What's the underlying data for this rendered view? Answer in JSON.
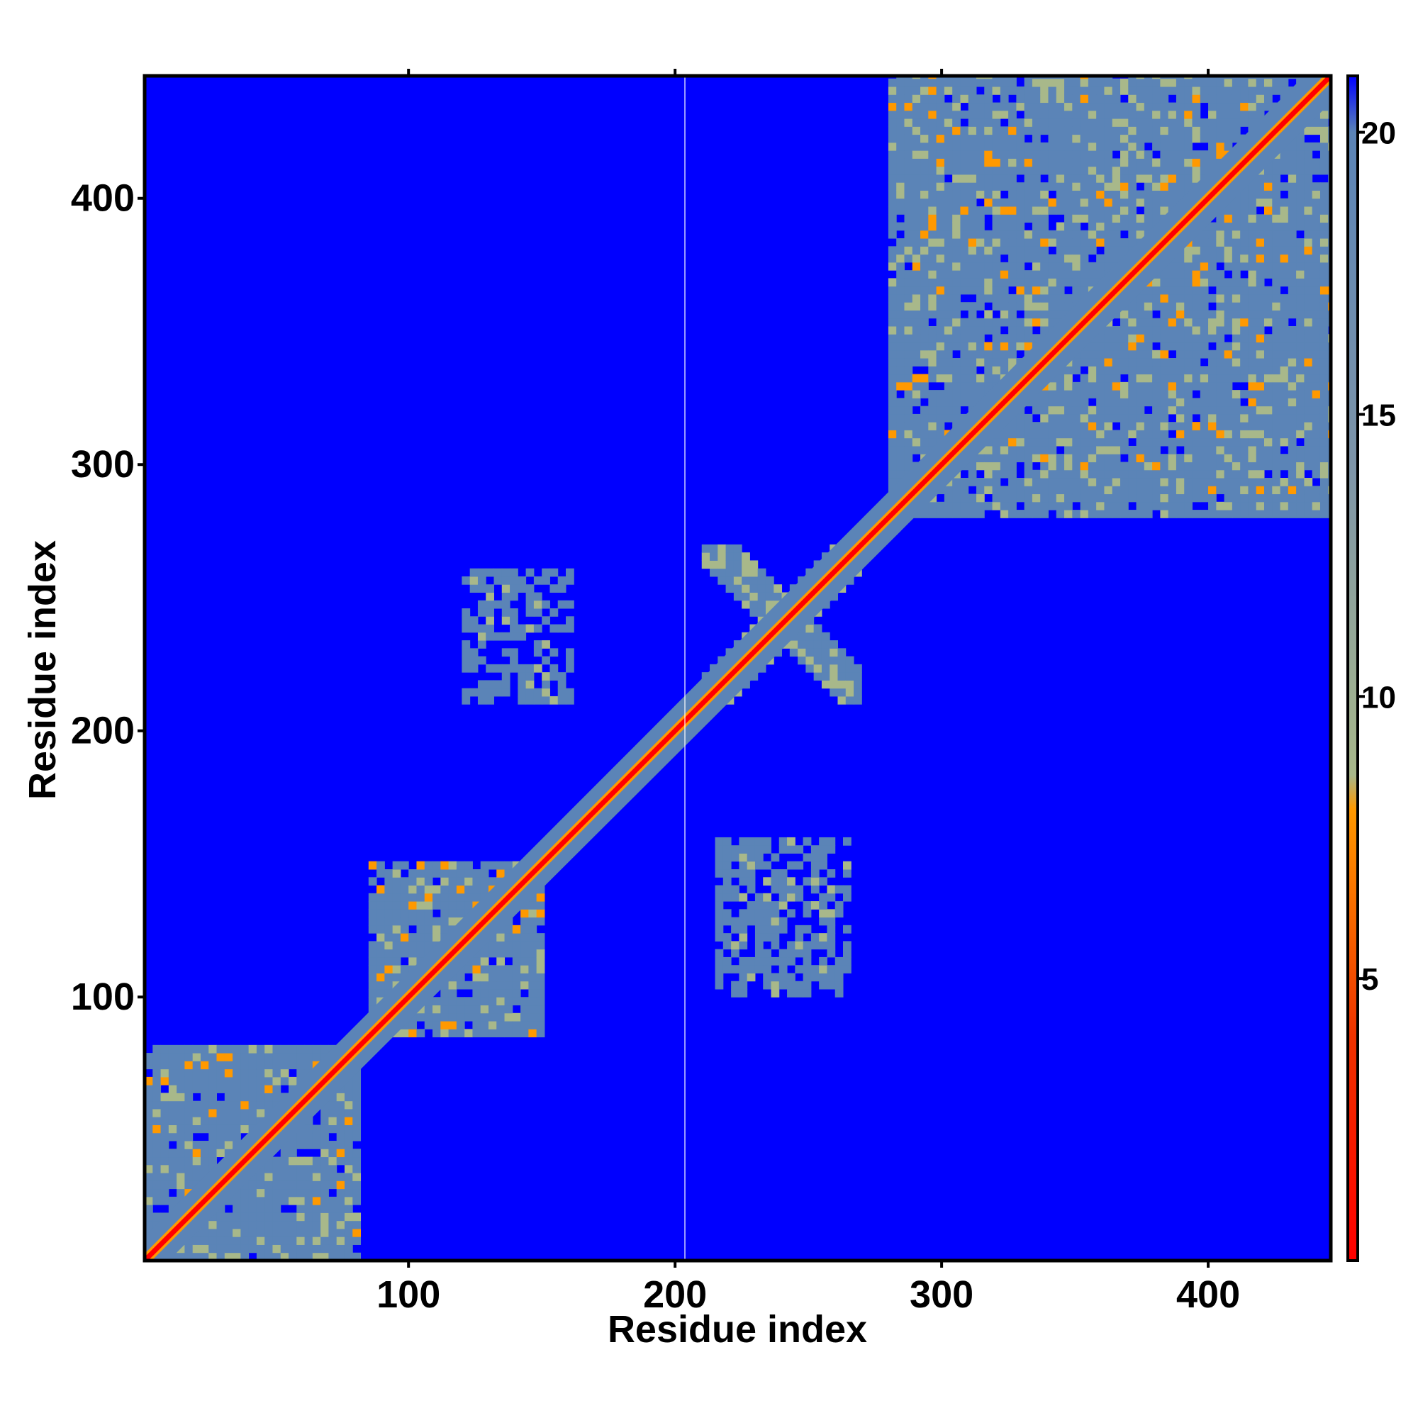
{
  "chart_data": {
    "type": "heatmap",
    "title": "",
    "xlabel": "Residue index",
    "ylabel": "Residue index",
    "xlim": [
      1,
      446
    ],
    "ylim": [
      1,
      446
    ],
    "xticks": [
      100,
      200,
      300,
      400
    ],
    "yticks": [
      100,
      200,
      300,
      400
    ],
    "colorbar": {
      "ticks": [
        5,
        10,
        15,
        20
      ],
      "range": [
        0,
        21
      ],
      "stops": [
        {
          "value": 0,
          "color": "#ff0000"
        },
        {
          "value": 4,
          "color": "#ee3300"
        },
        {
          "value": 8,
          "color": "#ff9900"
        },
        {
          "value": 8.6,
          "color": "#a8b88a"
        },
        {
          "value": 14,
          "color": "#7e95a8"
        },
        {
          "value": 20,
          "color": "#5b84b7"
        },
        {
          "value": 21,
          "color": "#0000ff"
        }
      ]
    },
    "background_color": "#0000ff",
    "diagonal_color": "#ff0000",
    "contact_regions": [
      {
        "x": [
          1,
          80
        ],
        "y": [
          1,
          80
        ],
        "level": "dense"
      },
      {
        "x": [
          85,
          150
        ],
        "y": [
          85,
          150
        ],
        "level": "dense"
      },
      {
        "x": [
          280,
          446
        ],
        "y": [
          280,
          446
        ],
        "level": "dense"
      },
      {
        "x": [
          210,
          270
        ],
        "y": [
          210,
          270
        ],
        "level": "cross"
      },
      {
        "x": [
          120,
          160
        ],
        "y": [
          210,
          260
        ],
        "level": "medium"
      },
      {
        "x": [
          215,
          265
        ],
        "y": [
          100,
          160
        ],
        "level": "medium"
      }
    ]
  }
}
